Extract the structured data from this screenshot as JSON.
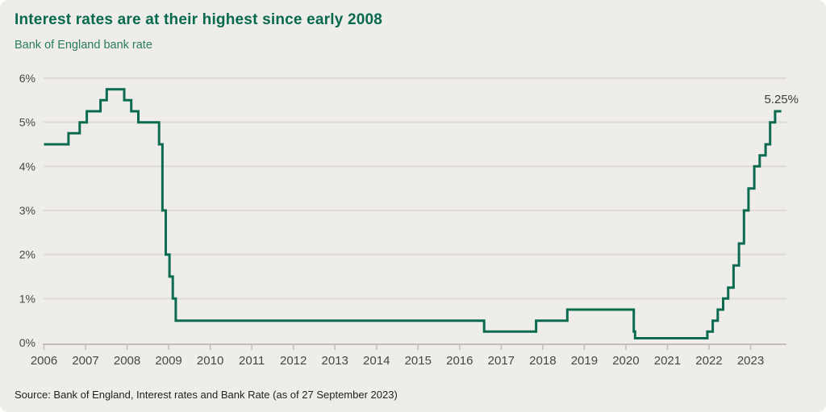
{
  "colors": {
    "card_background": "#EEEDE9",
    "title_green": "#076A4F",
    "subtitle_green": "#2B7B61",
    "line_green": "#0B6B50",
    "gridline": "#DEDBD6",
    "axis": "#C2BFBB",
    "tick_label": "#474645",
    "annotation_text": "#3E3D3C",
    "source_text": "#222222"
  },
  "chart_data": {
    "type": "line",
    "step": true,
    "title": "Interest rates are at their highest since early 2008",
    "subtitle": "Bank of England bank rate",
    "xlabel": "",
    "ylabel": "",
    "xlim": [
      2006,
      2023.9
    ],
    "ylim": [
      0,
      6
    ],
    "grid": "horizontal",
    "legend": "none",
    "x_ticks": [
      {
        "value": 2006,
        "label": "2006"
      },
      {
        "value": 2007,
        "label": "2007"
      },
      {
        "value": 2008,
        "label": "2008"
      },
      {
        "value": 2009,
        "label": "2009"
      },
      {
        "value": 2010,
        "label": "2010"
      },
      {
        "value": 2011,
        "label": "2011"
      },
      {
        "value": 2012,
        "label": "2012"
      },
      {
        "value": 2013,
        "label": "2013"
      },
      {
        "value": 2014,
        "label": "2014"
      },
      {
        "value": 2015,
        "label": "2015"
      },
      {
        "value": 2016,
        "label": "2016"
      },
      {
        "value": 2017,
        "label": "2017"
      },
      {
        "value": 2018,
        "label": "2018"
      },
      {
        "value": 2019,
        "label": "2019"
      },
      {
        "value": 2020,
        "label": "2020"
      },
      {
        "value": 2021,
        "label": "2021"
      },
      {
        "value": 2022,
        "label": "2022"
      },
      {
        "value": 2023,
        "label": "2023"
      }
    ],
    "y_ticks": [
      {
        "value": 0,
        "label": "0%"
      },
      {
        "value": 1,
        "label": "1%"
      },
      {
        "value": 2,
        "label": "2%"
      },
      {
        "value": 3,
        "label": "3%"
      },
      {
        "value": 4,
        "label": "4%"
      },
      {
        "value": 5,
        "label": "5%"
      },
      {
        "value": 6,
        "label": "6%"
      }
    ],
    "annotation": {
      "text": "5.25%",
      "x": 2023.74,
      "y": 5.25
    },
    "series": [
      {
        "name": "Bank of England bank rate",
        "end_x": 2023.74,
        "points": [
          [
            2006.0,
            4.5
          ],
          [
            2006.59,
            4.75
          ],
          [
            2006.86,
            5.0
          ],
          [
            2007.03,
            5.25
          ],
          [
            2007.36,
            5.5
          ],
          [
            2007.51,
            5.75
          ],
          [
            2007.93,
            5.5
          ],
          [
            2008.1,
            5.25
          ],
          [
            2008.27,
            5.0
          ],
          [
            2008.77,
            4.5
          ],
          [
            2008.85,
            3.0
          ],
          [
            2008.93,
            2.0
          ],
          [
            2009.02,
            1.5
          ],
          [
            2009.1,
            1.0
          ],
          [
            2009.17,
            0.5
          ],
          [
            2016.59,
            0.25
          ],
          [
            2017.84,
            0.5
          ],
          [
            2018.59,
            0.75
          ],
          [
            2020.19,
            0.25
          ],
          [
            2020.22,
            0.1
          ],
          [
            2021.96,
            0.25
          ],
          [
            2022.09,
            0.5
          ],
          [
            2022.21,
            0.75
          ],
          [
            2022.34,
            1.0
          ],
          [
            2022.46,
            1.25
          ],
          [
            2022.59,
            1.75
          ],
          [
            2022.72,
            2.25
          ],
          [
            2022.84,
            3.0
          ],
          [
            2022.95,
            3.5
          ],
          [
            2023.09,
            4.0
          ],
          [
            2023.22,
            4.25
          ],
          [
            2023.36,
            4.5
          ],
          [
            2023.47,
            5.0
          ],
          [
            2023.59,
            5.25
          ]
        ]
      }
    ],
    "source": "Source: Bank of England, Interest rates and Bank Rate (as of 27 September 2023)"
  }
}
